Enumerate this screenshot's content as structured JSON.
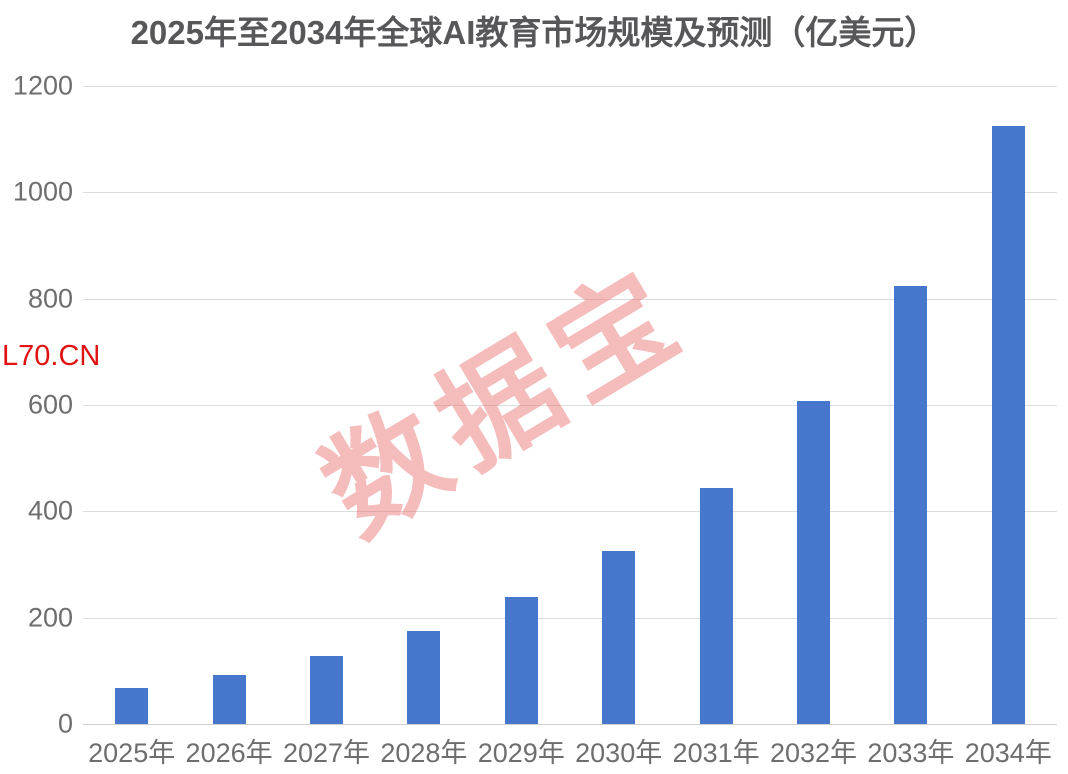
{
  "page": {
    "background": "#ffffff"
  },
  "chart_data": {
    "type": "bar",
    "title": "2025年至2034年全球AI教育市场规模及预测（亿美元）",
    "categories": [
      "2025年",
      "2026年",
      "2027年",
      "2028年",
      "2029年",
      "2030年",
      "2031年",
      "2032年",
      "2033年",
      "2034年"
    ],
    "values": [
      68,
      92,
      128,
      174,
      239,
      326,
      444,
      607,
      824,
      1124
    ],
    "xlabel": "",
    "ylabel": "",
    "ylim": [
      0,
      1200
    ],
    "ytick_interval": 200,
    "ytick_labels": [
      "0",
      "200",
      "400",
      "600",
      "800",
      "1000",
      "1200"
    ],
    "grid": true,
    "legend": "none",
    "bar_color": "#4677cd",
    "gridline_color": "#dcdcdc",
    "baseline_color": "#cfcfcf",
    "axis_label_color": "#6e6e6e",
    "title_color": "#57575a"
  },
  "watermarks": {
    "brand": "数据宝",
    "brand_color": "rgba(232,95,95,0.42)",
    "site": "L70.CN",
    "site_color": "#e01212"
  }
}
